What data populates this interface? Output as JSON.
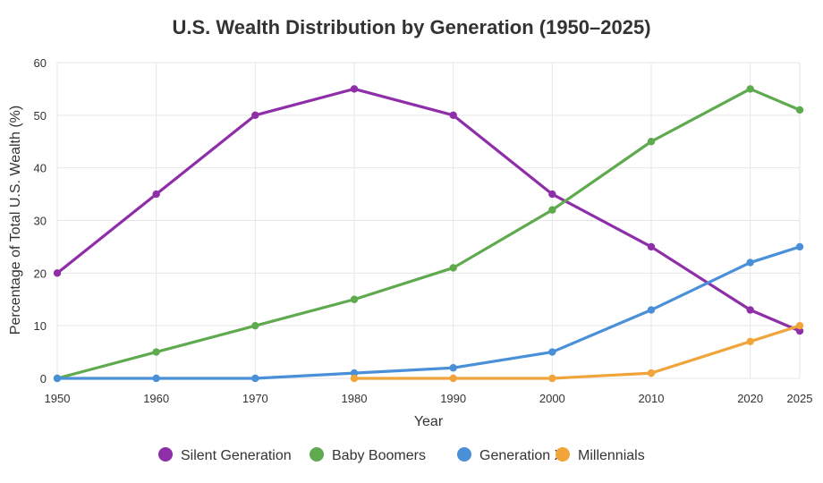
{
  "chart_data": {
    "type": "line",
    "title": "U.S. Wealth Distribution by Generation (1950–2025)",
    "xlabel": "Year",
    "ylabel": "Percentage of Total U.S. Wealth (%)",
    "x": [
      1950,
      1960,
      1970,
      1980,
      1990,
      2000,
      2010,
      2020,
      2025
    ],
    "x_tick_labels": [
      "1950",
      "1960",
      "1970",
      "1980",
      "1990",
      "2000",
      "2010",
      "2020",
      "2025"
    ],
    "ylim": [
      0,
      60
    ],
    "y_ticks": [
      0,
      10,
      20,
      30,
      40,
      50,
      60
    ],
    "grid": true,
    "legend_position": "bottom",
    "series": [
      {
        "name": "Silent Generation",
        "color": "#8e2ea8",
        "values": [
          20,
          35,
          50,
          55,
          50,
          35,
          25,
          13,
          9
        ]
      },
      {
        "name": "Baby Boomers",
        "color": "#5faa4f",
        "values": [
          0,
          5,
          10,
          15,
          21,
          32,
          45,
          55,
          51
        ]
      },
      {
        "name": "Generation X",
        "color": "#4a90d9",
        "values": [
          0,
          0,
          0,
          1,
          2,
          5,
          13,
          22,
          25
        ]
      },
      {
        "name": "Millennials",
        "color": "#f0a43a",
        "values": [
          null,
          null,
          null,
          0,
          0,
          0,
          1,
          7,
          10
        ]
      }
    ]
  }
}
